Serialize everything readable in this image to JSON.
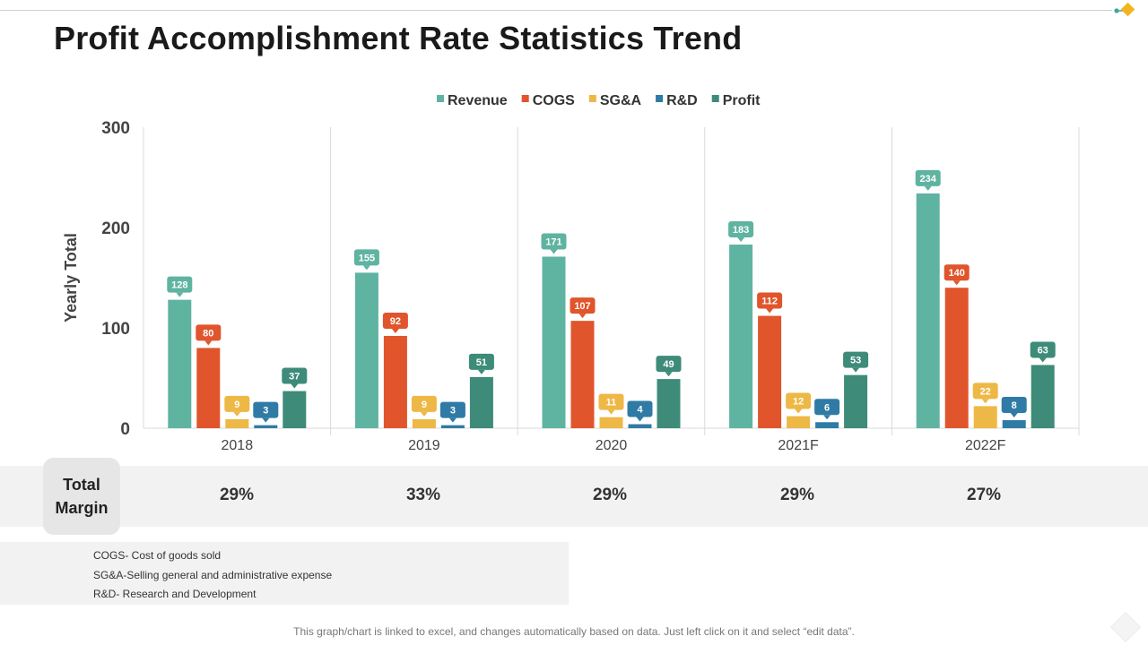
{
  "title": "Profit Accomplishment Rate Statistics Trend",
  "chart_data": {
    "type": "bar",
    "title": "",
    "ylabel": "Yearly Total",
    "xlabel": "",
    "ylim": [
      0,
      300
    ],
    "yticks": [
      0,
      100,
      200,
      300
    ],
    "categories": [
      "2018",
      "2019",
      "2020",
      "2021F",
      "2022F"
    ],
    "legend_position": "top",
    "series": [
      {
        "name": "Revenue",
        "color": "#5FB3A1",
        "values": [
          128,
          155,
          171,
          183,
          234
        ]
      },
      {
        "name": "COGS",
        "color": "#E0552C",
        "values": [
          80,
          92,
          107,
          112,
          140
        ]
      },
      {
        "name": "SG&A",
        "color": "#EDB845",
        "values": [
          9,
          9,
          11,
          12,
          22
        ]
      },
      {
        "name": "R&D",
        "color": "#2F7BA5",
        "values": [
          3,
          3,
          4,
          6,
          8
        ]
      },
      {
        "name": "Profit",
        "color": "#3D8B78",
        "values": [
          37,
          51,
          49,
          53,
          63
        ]
      }
    ]
  },
  "margin": {
    "label_line1": "Total",
    "label_line2": "Margin",
    "values": [
      "29%",
      "33%",
      "29%",
      "29%",
      "27%"
    ]
  },
  "notes": [
    "COGS- Cost of goods sold",
    "SG&A-Selling general and administrative expense",
    "R&D- Research and Development"
  ],
  "footer": "This graph/chart is linked to excel, and changes automatically based on data. Just left click on it and select “edit data”."
}
